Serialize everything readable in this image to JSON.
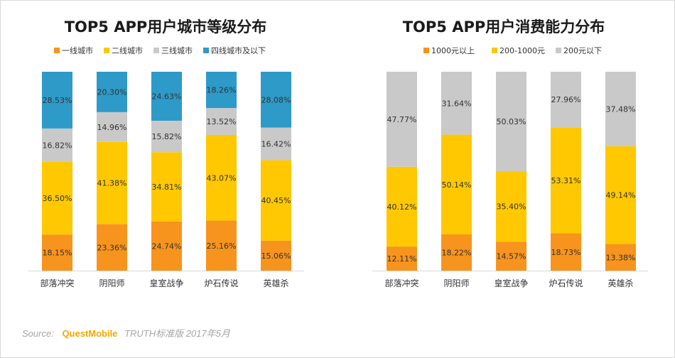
{
  "chart_data": [
    {
      "type": "bar",
      "stacked": true,
      "title": "TOP5 APP用户城市等级分布",
      "categories": [
        "部落冲突",
        "阴阳师",
        "皇室战争",
        "炉石传说",
        "英雄杀"
      ],
      "series": [
        {
          "name": "一线城市",
          "color": "#f7941d",
          "values": [
            18.15,
            23.36,
            24.74,
            25.16,
            15.06
          ]
        },
        {
          "name": "二线城市",
          "color": "#ffc800",
          "values": [
            36.5,
            41.38,
            34.81,
            43.07,
            40.45
          ]
        },
        {
          "name": "三线城市",
          "color": "#c9c9c9",
          "values": [
            16.82,
            14.96,
            15.82,
            13.52,
            16.42
          ]
        },
        {
          "name": "四线城市及以下",
          "color": "#2e9ac8",
          "values": [
            28.53,
            20.3,
            24.63,
            18.26,
            28.08
          ]
        }
      ],
      "labels": [
        [
          "18.15%",
          "23.36%",
          "24.74%",
          "25.16%",
          "15.06%"
        ],
        [
          "36.50%",
          "41.38%",
          "34.81%",
          "43.07%",
          "40.45%"
        ],
        [
          "16.82%",
          "14.96%",
          "15.82%",
          "13.52%",
          "16.42%"
        ],
        [
          "28.53%",
          "20.30%",
          "24.63%",
          "18.26%",
          "28.08%"
        ]
      ],
      "ylim": [
        0,
        100
      ],
      "legend_position": "top",
      "grid": false
    },
    {
      "type": "bar",
      "stacked": true,
      "title": "TOP5 APP用户消费能力分布",
      "categories": [
        "部落冲突",
        "阴阳师",
        "皇室战争",
        "炉石传说",
        "英雄杀"
      ],
      "series": [
        {
          "name": "1000元以上",
          "color": "#f7941d",
          "values": [
            12.11,
            18.22,
            14.57,
            18.73,
            13.38
          ]
        },
        {
          "name": "200-1000元",
          "color": "#ffc800",
          "values": [
            40.12,
            50.14,
            35.4,
            53.31,
            49.14
          ]
        },
        {
          "name": "200元以下",
          "color": "#c9c9c9",
          "values": [
            47.77,
            31.64,
            50.03,
            27.96,
            37.48
          ]
        }
      ],
      "labels": [
        [
          "12.11%",
          "18.22%",
          "14.57%",
          "18.73%",
          "13.38%"
        ],
        [
          "40.12%",
          "50.14%",
          "35.40%",
          "53.31%",
          "49.14%"
        ],
        [
          "47.77%",
          "31.64%",
          "50.03%",
          "27.96%",
          "37.48%"
        ]
      ],
      "ylim": [
        0,
        100
      ],
      "legend_position": "top",
      "grid": false
    }
  ],
  "footer": {
    "source_label": "Source:",
    "brand": "QuestMobile",
    "note": "TRUTH标准版 2017年5月"
  }
}
